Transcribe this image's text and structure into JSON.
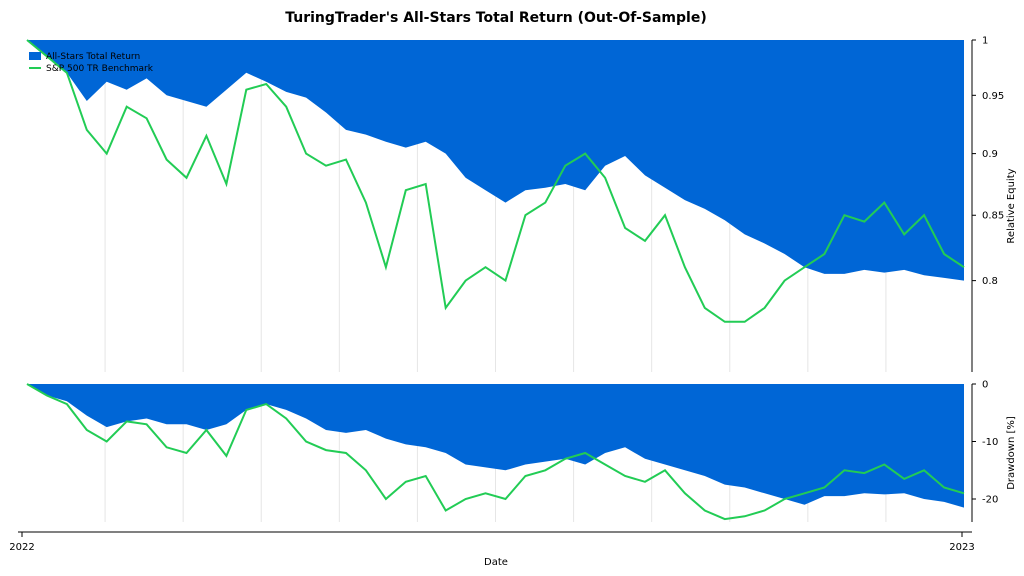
{
  "chart_data": {
    "type": "area",
    "title": "TuringTrader's All-Stars Total Return (Out-Of-Sample)",
    "xlabel": "Date",
    "x_ticks": [
      "2022",
      "2023"
    ],
    "legend_placement": "top-left",
    "legend": [
      "All-Stars Total Return",
      "S&P 500 TR Benchmark"
    ],
    "colors": {
      "all_stars": "#0066d6",
      "benchmark": "#22cc55",
      "grid": "#e6e6e6"
    },
    "x_points": 48,
    "panels": [
      {
        "name": "relative-equity",
        "ylabel": "Relative Equity",
        "ylim": [
          0.735,
          1.0
        ],
        "y_scale": "log",
        "y_ticks": [
          "1",
          "0.95",
          "0.9",
          "0.85",
          "0.8"
        ],
        "series": [
          {
            "name": "All-Stars Total Return",
            "style": "area",
            "values": [
              1.0,
              0.985,
              0.97,
              0.945,
              0.962,
              0.955,
              0.965,
              0.95,
              0.945,
              0.94,
              0.955,
              0.97,
              0.962,
              0.953,
              0.948,
              0.935,
              0.92,
              0.916,
              0.91,
              0.905,
              0.91,
              0.9,
              0.88,
              0.87,
              0.86,
              0.87,
              0.872,
              0.875,
              0.87,
              0.89,
              0.898,
              0.882,
              0.872,
              0.862,
              0.855,
              0.846,
              0.835,
              0.828,
              0.82,
              0.81,
              0.805,
              0.805,
              0.808,
              0.806,
              0.808,
              0.804,
              0.802,
              0.8
            ]
          },
          {
            "name": "S&P 500 TR Benchmark",
            "style": "line",
            "values": [
              1.0,
              0.985,
              0.97,
              0.92,
              0.9,
              0.94,
              0.93,
              0.895,
              0.88,
              0.915,
              0.875,
              0.955,
              0.96,
              0.94,
              0.9,
              0.89,
              0.895,
              0.86,
              0.81,
              0.87,
              0.875,
              0.78,
              0.8,
              0.81,
              0.8,
              0.85,
              0.86,
              0.89,
              0.9,
              0.88,
              0.84,
              0.83,
              0.85,
              0.81,
              0.78,
              0.77,
              0.77,
              0.78,
              0.8,
              0.81,
              0.82,
              0.85,
              0.845,
              0.86,
              0.835,
              0.85,
              0.82,
              0.81
            ]
          }
        ]
      },
      {
        "name": "drawdown",
        "ylabel": "Drawdown [%]",
        "ylim": [
          -24,
          0
        ],
        "y_ticks": [
          "0",
          "-10",
          "-20"
        ],
        "series": [
          {
            "name": "All-Stars Total Return",
            "style": "area",
            "values": [
              0,
              -2.0,
              -3.0,
              -5.5,
              -7.5,
              -6.5,
              -6.0,
              -7.0,
              -7.0,
              -8.0,
              -7.0,
              -4.5,
              -3.5,
              -4.5,
              -6.0,
              -8.0,
              -8.5,
              -8.0,
              -9.5,
              -10.5,
              -11.0,
              -12.0,
              -14.0,
              -14.5,
              -15.0,
              -14.0,
              -13.5,
              -13.0,
              -14.0,
              -12.0,
              -11.0,
              -13.0,
              -14.0,
              -15.0,
              -16.0,
              -17.5,
              -18.0,
              -19.0,
              -20.0,
              -21.0,
              -19.5,
              -19.5,
              -19.0,
              -19.2,
              -19.0,
              -20.0,
              -20.5,
              -21.5
            ]
          },
          {
            "name": "S&P 500 TR Benchmark",
            "style": "line",
            "values": [
              0,
              -2.0,
              -3.5,
              -8.0,
              -10.0,
              -6.5,
              -7.0,
              -11.0,
              -12.0,
              -8.0,
              -12.5,
              -4.5,
              -3.5,
              -6.0,
              -10.0,
              -11.5,
              -12.0,
              -15.0,
              -20.0,
              -17.0,
              -16.0,
              -22.0,
              -20.0,
              -19.0,
              -20.0,
              -16.0,
              -15.0,
              -13.0,
              -12.0,
              -14.0,
              -16.0,
              -17.0,
              -15.0,
              -19.0,
              -22.0,
              -23.5,
              -23.0,
              -22.0,
              -20.0,
              -19.0,
              -18.0,
              -15.0,
              -15.5,
              -14.0,
              -16.5,
              -15.0,
              -18.0,
              -19.0
            ]
          }
        ]
      }
    ]
  }
}
